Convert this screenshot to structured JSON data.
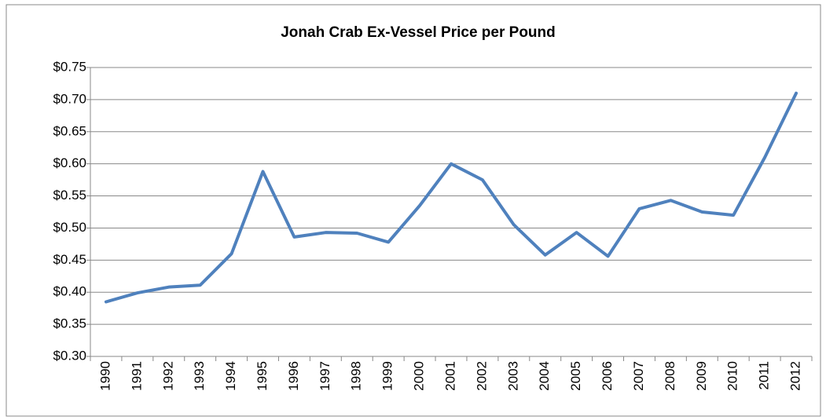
{
  "chart_data": {
    "type": "line",
    "title": "Jonah Crab Ex-Vessel Price per Pound",
    "categories": [
      "1990",
      "1991",
      "1992",
      "1993",
      "1994",
      "1995",
      "1996",
      "1997",
      "1998",
      "1999",
      "2000",
      "2001",
      "2002",
      "2003",
      "2004",
      "2005",
      "2006",
      "2007",
      "2008",
      "2009",
      "2010",
      "2011",
      "2012"
    ],
    "series": [
      {
        "name": "Price per Pound",
        "color": "#4f81bd",
        "values": [
          0.385,
          0.399,
          0.408,
          0.411,
          0.46,
          0.588,
          0.486,
          0.493,
          0.492,
          0.478,
          0.535,
          0.6,
          0.575,
          0.505,
          0.458,
          0.493,
          0.456,
          0.53,
          0.543,
          0.525,
          0.52,
          0.61,
          0.71
        ]
      }
    ],
    "ylim": [
      0.3,
      0.75
    ],
    "yticks": [
      {
        "value": 0.3,
        "label": "$0.30"
      },
      {
        "value": 0.35,
        "label": "$0.35"
      },
      {
        "value": 0.4,
        "label": "$0.40"
      },
      {
        "value": 0.45,
        "label": "$0.45"
      },
      {
        "value": 0.5,
        "label": "$0.50"
      },
      {
        "value": 0.55,
        "label": "$0.55"
      },
      {
        "value": 0.6,
        "label": "$0.60"
      },
      {
        "value": 0.65,
        "label": "$0.65"
      },
      {
        "value": 0.7,
        "label": "$0.70"
      },
      {
        "value": 0.75,
        "label": "$0.75"
      }
    ],
    "grid": true
  }
}
